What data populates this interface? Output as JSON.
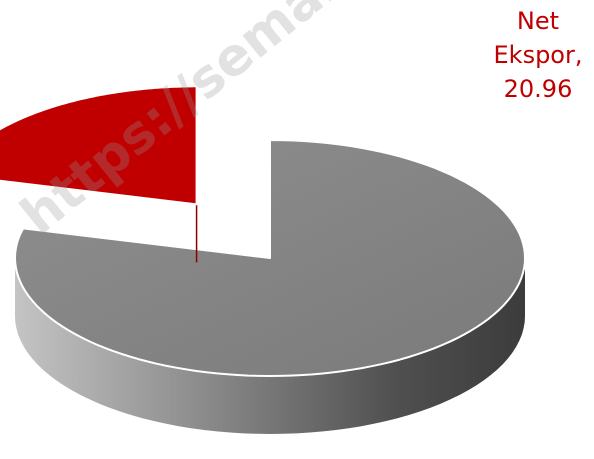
{
  "watermark": {
    "text": "https://semarangkota"
  },
  "chart_data": {
    "type": "pie",
    "style": "3d-exploded",
    "slices": [
      {
        "value": 79.04,
        "color": "#808080",
        "label_name": "",
        "label_value": ""
      },
      {
        "value": 20.96,
        "color": "#c00000",
        "label_name": "Net Ekspor,",
        "label_value": "20.96",
        "exploded": true
      }
    ],
    "title": "",
    "legend": "none"
  }
}
